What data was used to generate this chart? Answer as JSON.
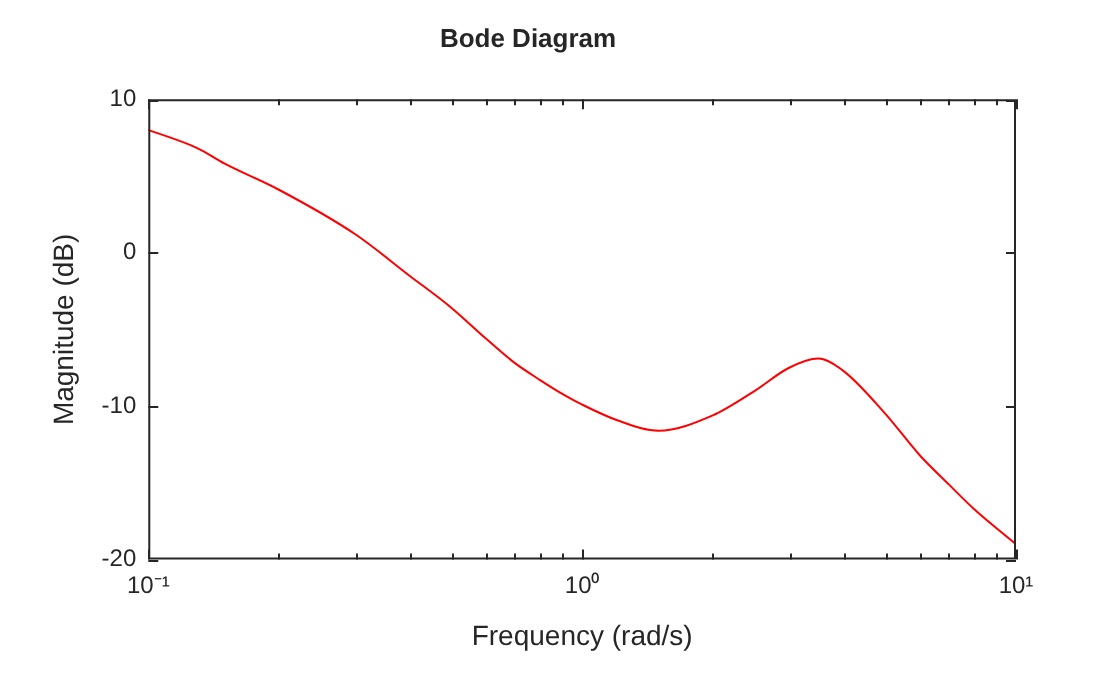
{
  "chart_data": {
    "type": "line",
    "title": "Bode Diagram",
    "xlabel": "Frequency (rad/s)",
    "ylabel": "Magnitude (dB)",
    "log": "x",
    "grid": false,
    "legend": false,
    "marker": "none",
    "line_style": "solid",
    "x": [
      0.1,
      0.13,
      0.15,
      0.2,
      0.3,
      0.4,
      0.5,
      0.6,
      0.7,
      0.8,
      0.9,
      1,
      1.2,
      1.5,
      2,
      2.5,
      3,
      3.5,
      4,
      5,
      6,
      7,
      8,
      10
    ],
    "series": [
      {
        "color": "#ff0000",
        "values": [
          8.0,
          6.8,
          5.8,
          4.1,
          1.2,
          -1.5,
          -3.6,
          -5.6,
          -7.2,
          -8.3,
          -9.2,
          -9.9,
          -10.9,
          -11.6,
          -10.6,
          -9.0,
          -7.5,
          -6.9,
          -7.7,
          -10.5,
          -13.2,
          -15.1,
          -16.7,
          -19.0
        ]
      }
    ],
    "xlim": [
      0.1,
      10
    ],
    "xticks": [
      {
        "value": 0.1,
        "label": "10⁻¹"
      },
      {
        "value": 0.2,
        "label": null
      },
      {
        "value": 0.3,
        "label": null
      },
      {
        "value": 0.4,
        "label": null
      },
      {
        "value": 0.5,
        "label": null
      },
      {
        "value": 0.6,
        "label": null
      },
      {
        "value": 0.7,
        "label": null
      },
      {
        "value": 0.8,
        "label": null
      },
      {
        "value": 0.9,
        "label": null
      },
      {
        "value": 1,
        "label": "10⁰"
      },
      {
        "value": 2,
        "label": null
      },
      {
        "value": 3,
        "label": null
      },
      {
        "value": 4,
        "label": null
      },
      {
        "value": 5,
        "label": null
      },
      {
        "value": 6,
        "label": null
      },
      {
        "value": 7,
        "label": null
      },
      {
        "value": 8,
        "label": null
      },
      {
        "value": 9,
        "label": null
      },
      {
        "value": 10,
        "label": "10¹"
      }
    ],
    "ylim": [
      -20,
      10
    ],
    "yticks": [
      -20,
      -10,
      0,
      10
    ]
  }
}
